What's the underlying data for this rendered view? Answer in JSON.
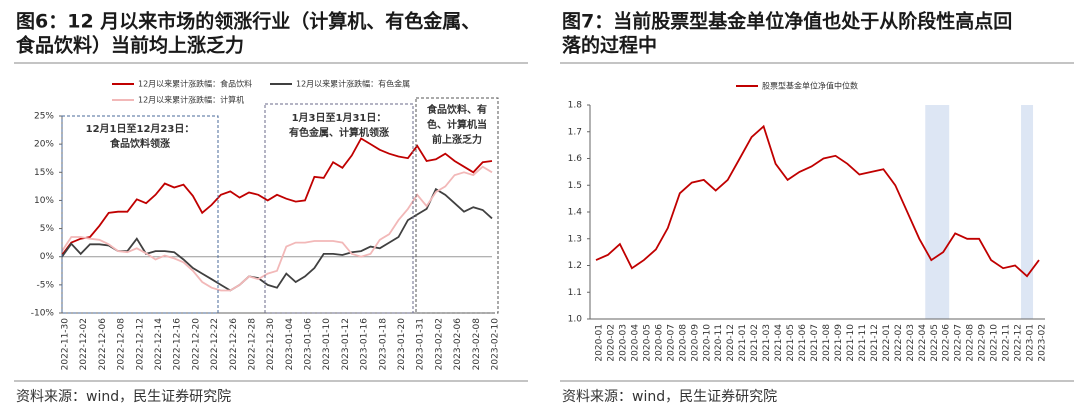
{
  "chart_data": [
    {
      "type": "line",
      "title": [
        "图6：12 月以来市场的领涨行业（计算机、有色金属、",
        "食品饮料）当前均上涨乏力"
      ],
      "source": "资料来源：wind，民生证券研究院",
      "categories": [
        "2022-11-30",
        null,
        "2022-12-02",
        null,
        "2022-12-06",
        null,
        "2022-12-08",
        null,
        "2022-12-12",
        null,
        "2022-12-14",
        null,
        "2022-12-16",
        null,
        "2022-12-20",
        null,
        "2022-12-22",
        null,
        "2022-12-26",
        null,
        "2022-12-28",
        null,
        "2022-12-30",
        null,
        "2023-01-04",
        null,
        "2023-01-06",
        null,
        "2023-01-10",
        null,
        "2023-01-12",
        null,
        "2023-01-16",
        null,
        "2023-01-18",
        null,
        "2023-01-20",
        null,
        "2023-01-31",
        null,
        "2023-02-02",
        null,
        "2023-02-06",
        null,
        "2023-02-08",
        null,
        "2023-02-10"
      ],
      "series": [
        {
          "name": "12月以来累计涨跌幅：食品饮料",
          "color": "#c00000",
          "values": [
            0.3,
            2.5,
            3.2,
            3.5,
            5.5,
            7.8,
            8,
            8,
            10.2,
            9.5,
            11,
            13,
            12.3,
            12.8,
            10.8,
            7.8,
            9.2,
            11,
            11.6,
            10.5,
            11.4,
            11,
            10,
            11,
            10.3,
            9.8,
            10,
            14.2,
            14,
            16.8,
            15.8,
            18,
            21,
            20,
            19,
            18.3,
            17.8,
            17.5,
            19.7,
            17,
            17.3,
            18.3,
            17,
            16,
            15,
            16.8,
            17
          ]
        },
        {
          "name": "12月以来累计涨跌幅：有色金属",
          "color": "#404040",
          "values": [
            0,
            2.3,
            0.5,
            2.2,
            2.2,
            2,
            1,
            1,
            3.2,
            0.5,
            1,
            1,
            0.8,
            -0.5,
            -2,
            -3,
            -4,
            -5,
            -6,
            -5,
            -3.5,
            -3.8,
            -5,
            -5.5,
            -3,
            -4.5,
            -3.5,
            -2,
            0.5,
            0.5,
            0.3,
            0.8,
            1,
            1.8,
            1.5,
            2.5,
            3.5,
            6.5,
            7.5,
            8.5,
            12,
            11,
            9.5,
            8,
            8.8,
            8.3,
            6.8
          ]
        },
        {
          "name": "12月以来累计涨跌幅：计算机",
          "color": "#f2b8b8",
          "values": [
            1,
            3.5,
            3.5,
            3.2,
            3,
            2.2,
            1,
            0.8,
            1.5,
            0.6,
            -0.5,
            0.2,
            -0.3,
            -1,
            -2.5,
            -4.5,
            -5.5,
            -6,
            -6,
            -5,
            -3.5,
            -4,
            -3,
            -2.5,
            1.8,
            2.5,
            2.5,
            2.8,
            2.8,
            2.8,
            2.5,
            0.5,
            0,
            0.5,
            3,
            4,
            6.5,
            8.5,
            11,
            9,
            11.5,
            12.5,
            14.5,
            15,
            14.5,
            16,
            15
          ]
        }
      ],
      "ylim": [
        -10,
        25
      ],
      "yticks": [
        {
          "value": -10,
          "label": "-10%"
        },
        {
          "value": -5,
          "label": "-5%"
        },
        {
          "value": 0,
          "label": "0%"
        },
        {
          "value": 5,
          "label": "5%"
        },
        {
          "value": 10,
          "label": "10%"
        },
        {
          "value": 15,
          "label": "15%"
        },
        {
          "value": 20,
          "label": "20%"
        },
        {
          "value": 25,
          "label": "25%"
        }
      ],
      "annotations": [
        {
          "lines": [
            "12月1日至12月23日：",
            "食品饮料领涨"
          ]
        },
        {
          "lines": [
            "1月3日至1月31日：",
            "有色金属、计算机领涨"
          ]
        },
        {
          "lines": [
            "食品饮料、有",
            "色、计算机当",
            "前上涨乏力"
          ]
        }
      ]
    },
    {
      "type": "line",
      "title": [
        "图7：当前股票型基金单位净值也处于从阶段性高点回",
        "落的过程中"
      ],
      "source": "资料来源：wind，民生证券研究院",
      "categories": [
        "2020-01",
        "2020-02",
        "2020-03",
        "2020-04",
        "2020-05",
        "2020-06",
        "2020-07",
        "2020-08",
        "2020-09",
        "2020-10",
        "2020-11",
        "2020-12",
        "2021-01",
        "2021-02",
        "2021-03",
        "2021-04",
        "2021-05",
        "2021-06",
        "2021-07",
        "2021-08",
        "2021-09",
        "2021-10",
        "2021-11",
        "2021-12",
        "2022-01",
        "2022-02",
        "2022-03",
        "2022-04",
        "2022-05",
        "2022-06",
        "2022-07",
        "2022-08",
        "2022-09",
        "2022-10",
        "2022-11",
        "2022-12",
        "2023-01",
        "2023-02"
      ],
      "series": [
        {
          "name": "股票型基金单位净值中位数",
          "color": "#c00000",
          "values": [
            1.22,
            1.24,
            1.28,
            1.19,
            1.22,
            1.26,
            1.34,
            1.47,
            1.51,
            1.52,
            1.48,
            1.52,
            1.6,
            1.68,
            1.72,
            1.58,
            1.52,
            1.55,
            1.57,
            1.6,
            1.61,
            1.58,
            1.54,
            1.55,
            1.56,
            1.5,
            1.4,
            1.3,
            1.22,
            1.25,
            1.32,
            1.3,
            1.3,
            1.22,
            1.19,
            1.2,
            1.16,
            1.22
          ]
        }
      ],
      "ylim": [
        1,
        1.8
      ],
      "yticks": [
        {
          "value": 1,
          "label": "1.0"
        },
        1.1,
        1.2,
        1.3,
        1.4,
        1.5,
        1.6,
        1.7,
        1.8
      ],
      "highlight": [
        {
          "from": "2022-05",
          "to": "2022-06"
        },
        {
          "from": "2023-01",
          "to": "2023-01"
        }
      ]
    }
  ]
}
